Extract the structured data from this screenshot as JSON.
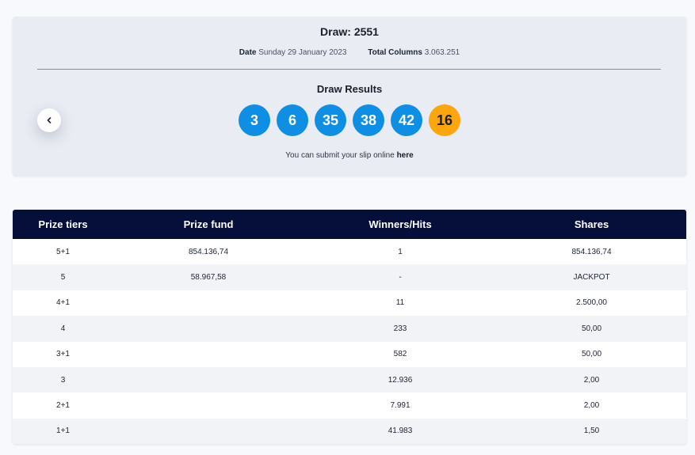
{
  "draw": {
    "title": "Draw: 2551",
    "date_label": "Date",
    "date_value": "Sunday 29 January 2023",
    "columns_label": "Total Columns",
    "columns_value": "3.063.251",
    "results_title": "Draw Results",
    "numbers": [
      "3",
      "6",
      "35",
      "38",
      "42"
    ],
    "bonus": "16",
    "submit_text": "You can submit your slip online",
    "submit_link": "here"
  },
  "colors": {
    "ball_main": "#0f8fe3",
    "ball_bonus": "#fba60d",
    "table_header": "#050f3a"
  },
  "icons": {
    "prev": "chevron-left-icon"
  },
  "table": {
    "headers": [
      "Prize tiers",
      "Prize fund",
      "Winners/Hits",
      "Shares"
    ],
    "rows": [
      [
        "5+1",
        "854.136,74",
        "1",
        "854.136,74"
      ],
      [
        "5",
        "58.967,58",
        "-",
        "JACKPOT"
      ],
      [
        "4+1",
        "",
        "11",
        "2.500,00"
      ],
      [
        "4",
        "",
        "233",
        "50,00"
      ],
      [
        "3+1",
        "",
        "582",
        "50,00"
      ],
      [
        "3",
        "",
        "12.936",
        "2,00"
      ],
      [
        "2+1",
        "",
        "7.991",
        "2,00"
      ],
      [
        "1+1",
        "",
        "41.983",
        "1,50"
      ]
    ]
  }
}
